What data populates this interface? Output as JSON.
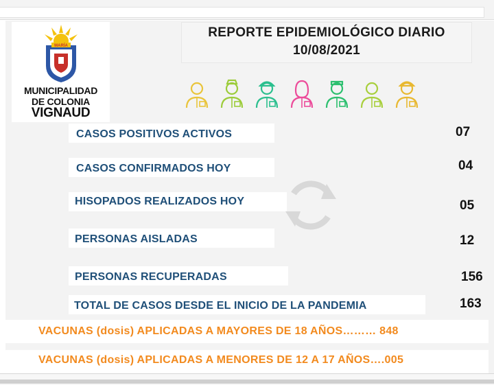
{
  "logo": {
    "line1": "MUNICIPALIDAD",
    "line2": "DE COLONIA",
    "line3": "VIGNAUD",
    "emblem_text": "MARÍA",
    "colors": {
      "sun": "#f4c20d",
      "shield_blue": "#2d57a6",
      "shield_red": "#c7302a"
    }
  },
  "header": {
    "title": "REPORTE EPIDEMIOLÓGICO DIARIO",
    "date": "10/08/2021"
  },
  "icons": [
    {
      "name": "worker-icon",
      "color": "#e9c43a"
    },
    {
      "name": "doctor-icon",
      "color": "#9ccc3a"
    },
    {
      "name": "construction-worker-icon",
      "color": "#2bbf8e"
    },
    {
      "name": "nurse-icon",
      "color": "#ec4b9a"
    },
    {
      "name": "paramedic-icon",
      "color": "#2bbf6e"
    },
    {
      "name": "chef-icon",
      "color": "#a8cf3c"
    },
    {
      "name": "firefighter-icon",
      "color": "#e8b830"
    }
  ],
  "stats": [
    {
      "label": "CASOS POSITIVOS ACTIVOS",
      "value": "07"
    },
    {
      "label": "CASOS CONFIRMADOS HOY",
      "value": "04"
    },
    {
      "label": "HISOPADOS REALIZADOS HOY",
      "value": "05"
    },
    {
      "label": "PERSONAS AISLADAS",
      "value": "12"
    },
    {
      "label": "PERSONAS RECUPERADAS",
      "value": "156"
    },
    {
      "label": "TOTAL DE CASOS DESDE EL INICIO DE LA PANDEMIA",
      "value": "163"
    }
  ],
  "vaccines": {
    "adults": "VACUNAS (dosis) APLICADAS  A MAYORES DE 18 AÑOS……… 848",
    "minors": "VACUNAS (dosis) APLICADAS A MENORES DE 12 A 17 AÑOS….005"
  },
  "colors": {
    "label_blue": "#1f4f78",
    "vaccine_orange": "#f28a1e"
  }
}
